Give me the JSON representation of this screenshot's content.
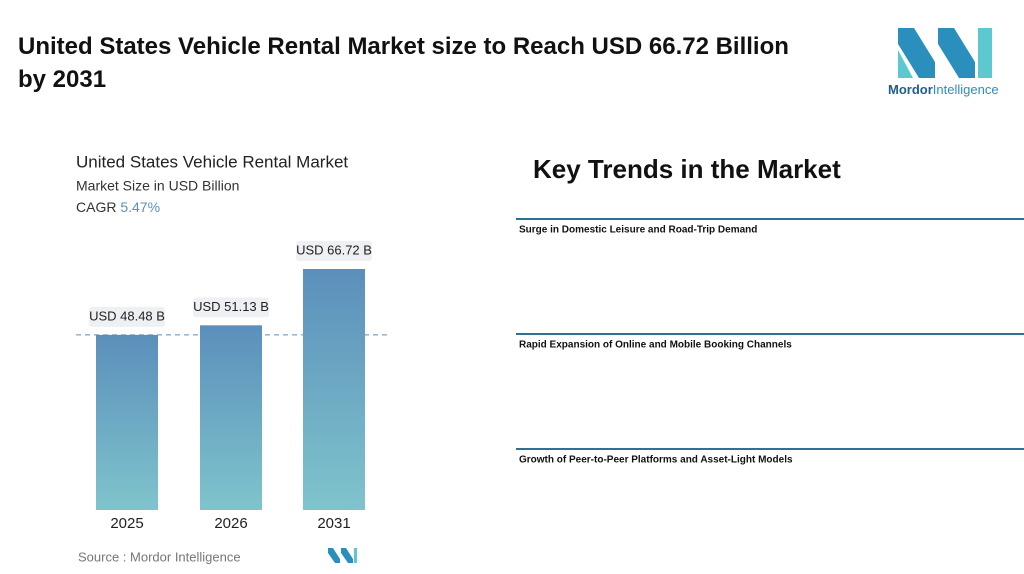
{
  "header": {
    "title": "United States Vehicle Rental Market size to Reach USD 66.72 Billion by 2031",
    "logo_brand": "Mordor",
    "logo_suffix": "Intelligence"
  },
  "chart_data": {
    "type": "bar",
    "title": "United States Vehicle Rental Market",
    "subtitle": "Market Size in USD Billion",
    "cagr_label": "CAGR",
    "cagr_value": "5.47%",
    "categories": [
      "2025",
      "2026",
      "2031"
    ],
    "values": [
      48.48,
      51.13,
      66.72
    ],
    "value_labels": [
      "USD 48.48 B",
      "USD 51.13 B",
      "USD 66.72 B"
    ],
    "color_top": "#5b8fbb",
    "color_bottom": "#7fc4cc"
  },
  "source": "Source :  Mordor Intelligence",
  "trends": {
    "title": "Key Trends in the Market",
    "items": [
      "Surge in Domestic Leisure and Road-Trip Demand",
      "Rapid Expansion of Online and Mobile Booking Channels",
      "Growth of Peer-to-Peer Platforms and Asset-Light Models"
    ]
  }
}
